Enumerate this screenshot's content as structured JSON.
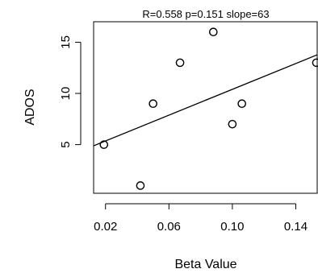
{
  "chart_data": {
    "type": "scatter",
    "title": "R=0.558 p=0.151 slope=63",
    "xlabel": "Beta Value",
    "ylabel": "ADOS",
    "xlim": [
      0.0125,
      0.1535
    ],
    "ylim": [
      0.25,
      17
    ],
    "x_ticks": [
      0.02,
      0.06,
      0.1,
      0.14
    ],
    "x_tick_labels": [
      "0.02",
      "0.06",
      "0.10",
      "0.14"
    ],
    "y_ticks": [
      5,
      10,
      15
    ],
    "y_tick_labels": [
      "5",
      "10",
      "15"
    ],
    "points": [
      {
        "x": 0.019,
        "y": 5
      },
      {
        "x": 0.042,
        "y": 1
      },
      {
        "x": 0.05,
        "y": 9
      },
      {
        "x": 0.067,
        "y": 13
      },
      {
        "x": 0.088,
        "y": 16
      },
      {
        "x": 0.1,
        "y": 7
      },
      {
        "x": 0.106,
        "y": 9
      },
      {
        "x": 0.153,
        "y": 13
      }
    ],
    "fit_line": {
      "intercept": 4.1,
      "slope": 63
    },
    "grid": false,
    "legend": "none"
  }
}
